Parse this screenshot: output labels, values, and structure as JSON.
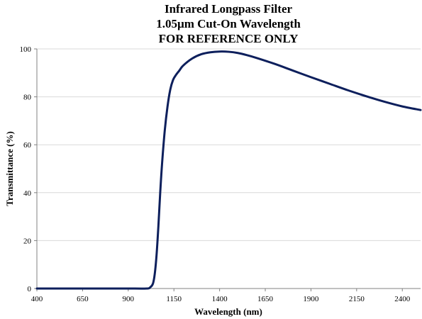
{
  "chart_data": {
    "type": "line",
    "title": [
      "Infrared Longpass Filter",
      "1.05µm Cut-On Wavelength",
      "FOR REFERENCE ONLY"
    ],
    "xlabel": "Wavelength (nm)",
    "ylabel": "Transmittance (%)",
    "xlim": [
      400,
      2500
    ],
    "ylim": [
      0,
      100
    ],
    "xticks": [
      400,
      650,
      900,
      1150,
      1400,
      1650,
      1900,
      2150,
      2400
    ],
    "yticks": [
      0,
      20,
      40,
      60,
      80,
      100
    ],
    "grid": {
      "horizontal": true,
      "vertical": false
    },
    "legend": "none",
    "series": [
      {
        "color": "#0d1f5c",
        "x": [
          400,
          600,
          800,
          900,
          1000,
          1020,
          1035,
          1045,
          1055,
          1065,
          1075,
          1085,
          1100,
          1115,
          1130,
          1145,
          1160,
          1180,
          1200,
          1250,
          1300,
          1350,
          1400,
          1450,
          1500,
          1550,
          1600,
          1700,
          1800,
          1900,
          2000,
          2100,
          2200,
          2300,
          2400,
          2500
        ],
        "y": [
          0,
          0,
          0,
          0,
          0,
          0.5,
          2,
          6,
          14,
          26,
          40,
          52,
          66,
          76,
          83,
          87,
          89,
          91,
          93,
          96,
          97.8,
          98.6,
          98.9,
          98.8,
          98.3,
          97.4,
          96.3,
          93.8,
          91,
          88.2,
          85.5,
          82.8,
          80.3,
          78,
          76,
          74.5
        ]
      }
    ]
  }
}
